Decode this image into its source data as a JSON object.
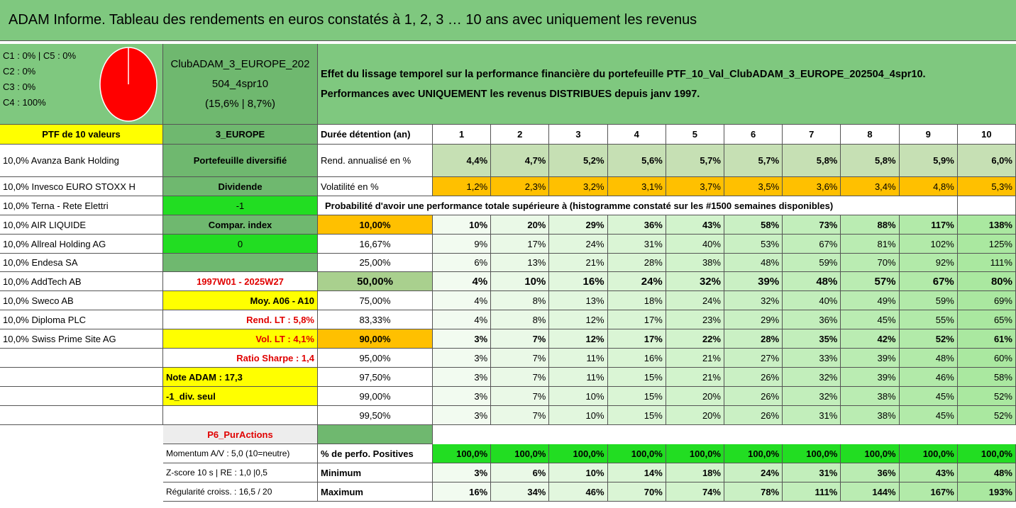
{
  "header": {
    "title": "ADAM Informe. Tableau des rendements en euros constatés à 1, 2, 3 … 10 ans avec uniquement les revenus"
  },
  "pie_legend": [
    "C1 : 0% | C5 : 0%",
    "C2 : 0%",
    "C3 : 0%",
    "C4 : 100%"
  ],
  "portfolio": [
    "ClubADAM_3_EUROPE_202",
    "504_4spr10",
    "(15,6% | 8,7%)"
  ],
  "description": [
    "Effet du lissage temporel sur la performance financière du portefeuille PTF_10_Val_ClubADAM_3_EUROPE_202504_4spr10.",
    "Performances avec UNIQUEMENT les revenus DISTRIBUES depuis janv 1997."
  ],
  "table": {
    "rows": [
      {
        "holding": "PTF de 10 valeurs",
        "info": "3_EUROPE",
        "label": "Durée détention (an)",
        "values": [
          "1",
          "2",
          "3",
          "4",
          "5",
          "6",
          "7",
          "8",
          "9",
          "10"
        ]
      },
      {
        "holding": "10,0% Avanza Bank Holding",
        "info": "Portefeuille diversifié",
        "label": "Rend. annualisé en %",
        "values": [
          "4,4%",
          "4,7%",
          "5,2%",
          "5,6%",
          "5,7%",
          "5,7%",
          "5,8%",
          "5,8%",
          "5,9%",
          "6,0%"
        ]
      },
      {
        "holding": "10,0% Invesco EURO STOXX H",
        "info": "Dividende",
        "label": "Volatilité en %",
        "values": [
          "1,2%",
          "2,3%",
          "3,2%",
          "3,1%",
          "3,7%",
          "3,5%",
          "3,6%",
          "3,4%",
          "4,8%",
          "5,3%"
        ]
      },
      {
        "holding": "10,0% Terna - Rete Elettri",
        "info": "-1",
        "label": "Probabilité d'avoir une performance totale supérieure à (histogramme constaté sur les #1500 semaines disponibles)"
      },
      {
        "holding": "10,0% AIR LIQUIDE",
        "info": "Compar. index",
        "label": "10,00%",
        "values": [
          "10%",
          "20%",
          "29%",
          "36%",
          "43%",
          "58%",
          "73%",
          "88%",
          "117%",
          "138%"
        ]
      },
      {
        "holding": "10,0% Allreal Holding AG",
        "info": "0",
        "label": "16,67%",
        "values": [
          "9%",
          "17%",
          "24%",
          "31%",
          "40%",
          "53%",
          "67%",
          "81%",
          "102%",
          "125%"
        ]
      },
      {
        "holding": "10,0% Endesa SA",
        "label": "25,00%",
        "values": [
          "6%",
          "13%",
          "21%",
          "28%",
          "38%",
          "48%",
          "59%",
          "70%",
          "92%",
          "111%"
        ]
      },
      {
        "holding": "10,0% AddTech AB",
        "info": "1997W01 - 2025W27",
        "label": "50,00%",
        "values": [
          "4%",
          "10%",
          "16%",
          "24%",
          "32%",
          "39%",
          "48%",
          "57%",
          "67%",
          "80%"
        ]
      },
      {
        "holding": "10,0% Sweco AB",
        "info": "Moy. A06 - A10",
        "label": "75,00%",
        "values": [
          "4%",
          "8%",
          "13%",
          "18%",
          "24%",
          "32%",
          "40%",
          "49%",
          "59%",
          "69%"
        ]
      },
      {
        "holding": "10,0% Diploma PLC",
        "info": "Rend. LT : 5,8%",
        "label": "83,33%",
        "values": [
          "4%",
          "8%",
          "12%",
          "17%",
          "23%",
          "29%",
          "36%",
          "45%",
          "55%",
          "65%"
        ]
      },
      {
        "holding": "10,0% Swiss Prime Site AG",
        "info": "Vol. LT : 4,1%",
        "label": "90,00%",
        "values": [
          "3%",
          "7%",
          "12%",
          "17%",
          "22%",
          "28%",
          "35%",
          "42%",
          "52%",
          "61%"
        ]
      },
      {
        "info": "Ratio Sharpe : 1,4",
        "label": "95,00%",
        "values": [
          "3%",
          "7%",
          "11%",
          "16%",
          "21%",
          "27%",
          "33%",
          "39%",
          "48%",
          "60%"
        ]
      },
      {
        "info": "Note ADAM : 17,3",
        "label": "97,50%",
        "values": [
          "3%",
          "7%",
          "11%",
          "15%",
          "21%",
          "26%",
          "32%",
          "39%",
          "46%",
          "58%"
        ]
      },
      {
        "info": "-1_div. seul",
        "label": "99,00%",
        "values": [
          "3%",
          "7%",
          "10%",
          "15%",
          "20%",
          "26%",
          "32%",
          "38%",
          "45%",
          "52%"
        ]
      },
      {
        "label": "99,50%",
        "values": [
          "3%",
          "7%",
          "10%",
          "15%",
          "20%",
          "26%",
          "31%",
          "38%",
          "45%",
          "52%"
        ]
      },
      {
        "info": "P6_PurActions"
      },
      {
        "info": "Momentum A/V : 5,0 (10=neutre)",
        "label": "% de perfo. Positives",
        "values": [
          "100,0%",
          "100,0%",
          "100,0%",
          "100,0%",
          "100,0%",
          "100,0%",
          "100,0%",
          "100,0%",
          "100,0%",
          "100,0%"
        ]
      },
      {
        "info": "Z-score 10 s | RE : 1,0 |0,5",
        "label": "Minimum",
        "values": [
          "3%",
          "6%",
          "10%",
          "14%",
          "18%",
          "24%",
          "31%",
          "36%",
          "43%",
          "48%"
        ]
      },
      {
        "info": "Régularité croiss. : 16,5 / 20",
        "label": "Maximum",
        "values": [
          "16%",
          "34%",
          "46%",
          "70%",
          "74%",
          "78%",
          "111%",
          "144%",
          "167%",
          "193%"
        ]
      }
    ]
  }
}
